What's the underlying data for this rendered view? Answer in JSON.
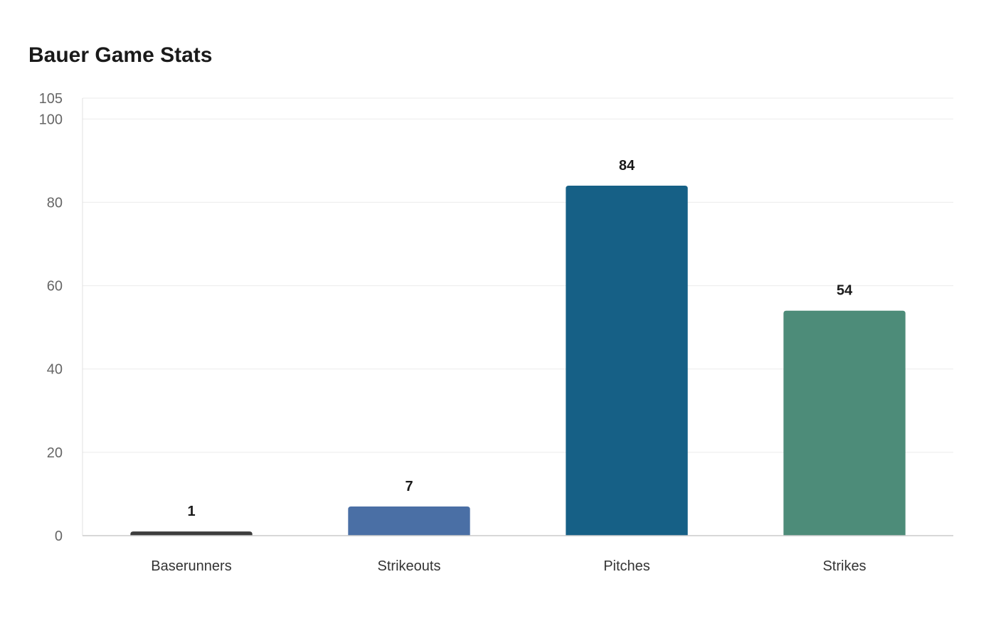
{
  "chart_data": {
    "type": "bar",
    "title": "Bauer Game Stats",
    "xlabel": "",
    "ylabel": "",
    "categories": [
      "Baserunners",
      "Strikeouts",
      "Pitches",
      "Strikes"
    ],
    "values": [
      1,
      7,
      84,
      54
    ],
    "colors": [
      "#3d3d3d",
      "#4a6fa5",
      "#166086",
      "#4d8c79"
    ],
    "ylim": [
      0,
      105
    ],
    "yticks": [
      0,
      20,
      40,
      60,
      80,
      100,
      105
    ],
    "grid": true,
    "legend": "none",
    "data_labels": true
  }
}
